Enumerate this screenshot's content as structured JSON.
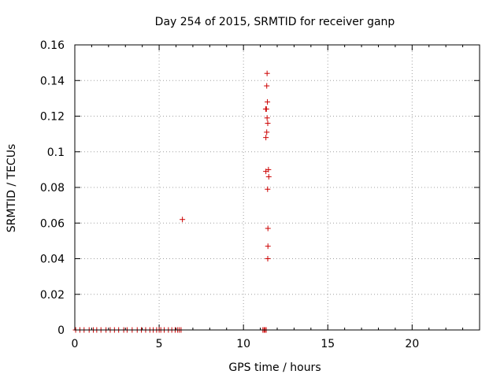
{
  "chart_data": {
    "type": "scatter",
    "title": "Day 254 of 2015, SRMTID for receiver ganp",
    "xlabel": "GPS time / hours",
    "ylabel": "SRMTID / TECUs",
    "xlim": [
      0,
      24
    ],
    "ylim": [
      0,
      0.16
    ],
    "grid": true,
    "marker": "+",
    "marker_color": "#cc0000",
    "x_ticks": [
      0,
      5,
      10,
      15,
      20
    ],
    "x_tick_labels": [
      "0",
      "5",
      "10",
      "15",
      "20"
    ],
    "y_ticks": [
      0,
      0.02,
      0.04,
      0.06,
      0.08,
      0.1,
      0.12,
      0.14,
      0.16
    ],
    "y_tick_labels": [
      "0",
      "0.02",
      "0.04",
      "0.06",
      "0.08",
      "0.1",
      "0.12",
      "0.14",
      "0.16"
    ],
    "series": [
      {
        "name": "SRMTID",
        "points": [
          [
            0.05,
            0
          ],
          [
            0.3,
            0
          ],
          [
            0.55,
            0
          ],
          [
            0.85,
            0
          ],
          [
            1.1,
            0
          ],
          [
            1.3,
            0
          ],
          [
            1.55,
            0
          ],
          [
            1.85,
            0
          ],
          [
            2.1,
            0
          ],
          [
            2.35,
            0
          ],
          [
            2.6,
            0
          ],
          [
            2.9,
            0
          ],
          [
            3.1,
            0
          ],
          [
            3.4,
            0
          ],
          [
            3.7,
            0
          ],
          [
            3.95,
            0
          ],
          [
            4.2,
            0
          ],
          [
            4.45,
            0
          ],
          [
            4.65,
            0
          ],
          [
            4.85,
            0
          ],
          [
            5.0,
            0
          ],
          [
            5.1,
            0
          ],
          [
            5.3,
            0
          ],
          [
            5.55,
            0
          ],
          [
            5.75,
            0
          ],
          [
            5.95,
            0
          ],
          [
            6.1,
            0
          ],
          [
            6.2,
            0
          ],
          [
            6.3,
            0
          ],
          [
            6.38,
            0.062
          ],
          [
            11.15,
            0
          ],
          [
            11.22,
            0
          ],
          [
            11.28,
            0
          ],
          [
            11.35,
            0
          ],
          [
            11.4,
            0.144
          ],
          [
            11.38,
            0.137
          ],
          [
            11.42,
            0.128
          ],
          [
            11.32,
            0.124
          ],
          [
            11.36,
            0.124
          ],
          [
            11.4,
            0.119
          ],
          [
            11.44,
            0.116
          ],
          [
            11.38,
            0.111
          ],
          [
            11.33,
            0.108
          ],
          [
            11.48,
            0.09
          ],
          [
            11.33,
            0.089
          ],
          [
            11.5,
            0.086
          ],
          [
            11.43,
            0.079
          ],
          [
            11.45,
            0.057
          ],
          [
            11.45,
            0.047
          ],
          [
            11.44,
            0.04
          ]
        ]
      }
    ]
  }
}
